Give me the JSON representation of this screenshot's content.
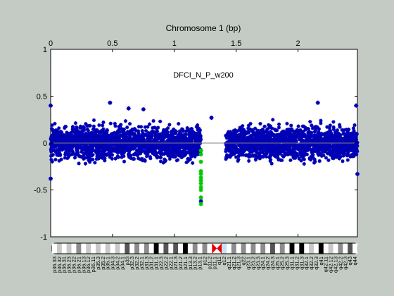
{
  "chart_data": {
    "type": "scatter",
    "title": "Chromosome 1 (bp)",
    "annotation": "DFCI_N_P_w200",
    "xlim": [
      0,
      2.48
    ],
    "ylim": [
      -1,
      1
    ],
    "x_ticks": [
      {
        "value": 0,
        "label": "0"
      },
      {
        "value": 0.5,
        "label": "0.5"
      },
      {
        "value": 1,
        "label": "1"
      },
      {
        "value": 1.5,
        "label": "1.5"
      },
      {
        "value": 2,
        "label": "2"
      }
    ],
    "y_ticks": [
      {
        "value": 1,
        "label": "1"
      },
      {
        "value": 0.5,
        "label": "0.5"
      },
      {
        "value": 0,
        "label": "0"
      },
      {
        "value": -0.5,
        "label": "-0.5"
      },
      {
        "value": -1,
        "label": "-1"
      }
    ],
    "x_axis_position": "top",
    "baseline": 0,
    "colors": {
      "points": "#0000b4",
      "highlight": "#00c800",
      "baseline": "#808080",
      "background": "#c4cbc4",
      "plot_bg": "#ffffff"
    },
    "point_groups": [
      {
        "x_start": 0.0,
        "x_end": 1.215,
        "y_center": 0.0,
        "y_spread_low": -0.26,
        "y_spread_high": 0.27,
        "color": "#0000b4"
      },
      {
        "x_start": 1.415,
        "x_end": 2.48,
        "y_center": 0.0,
        "y_spread_low": -0.26,
        "y_spread_high": 0.27,
        "color": "#0000b4"
      }
    ],
    "points": [
      {
        "x": 0.0,
        "y": 0.4,
        "color": "#0000b4"
      },
      {
        "x": 0.0,
        "y": -0.38,
        "color": "#0000b4"
      },
      {
        "x": 0.48,
        "y": 0.43,
        "color": "#0000b4"
      },
      {
        "x": 0.63,
        "y": 0.37,
        "color": "#0000b4"
      },
      {
        "x": 0.75,
        "y": 0.36,
        "color": "#0000b4"
      },
      {
        "x": 1.3,
        "y": 0.27,
        "color": "#0000b4"
      },
      {
        "x": 2.16,
        "y": 0.43,
        "color": "#0000b4"
      },
      {
        "x": 2.47,
        "y": 0.4,
        "color": "#0000b4"
      },
      {
        "x": 2.48,
        "y": -0.33,
        "color": "#0000b4"
      },
      {
        "x": 1.215,
        "y": -0.62,
        "color": "#0000b4"
      },
      {
        "x": 1.215,
        "y": -0.08,
        "color": "#00c800"
      },
      {
        "x": 1.215,
        "y": -0.12,
        "color": "#00c800"
      },
      {
        "x": 1.215,
        "y": -0.2,
        "color": "#00c800"
      },
      {
        "x": 1.215,
        "y": -0.3,
        "color": "#00c800"
      },
      {
        "x": 1.215,
        "y": -0.33,
        "color": "#00c800"
      },
      {
        "x": 1.215,
        "y": -0.37,
        "color": "#00c800"
      },
      {
        "x": 1.215,
        "y": -0.4,
        "color": "#00c800"
      },
      {
        "x": 1.215,
        "y": -0.43,
        "color": "#00c800"
      },
      {
        "x": 1.215,
        "y": -0.47,
        "color": "#00c800"
      },
      {
        "x": 1.215,
        "y": -0.5,
        "color": "#00c800"
      },
      {
        "x": 1.215,
        "y": -0.58,
        "color": "#00c800"
      },
      {
        "x": 1.215,
        "y": -0.65,
        "color": "#00c800"
      }
    ]
  },
  "ideogram": {
    "bands": [
      {
        "label": "p36.33",
        "stain": "gneg"
      },
      {
        "label": "p36.32",
        "stain": "gpos25"
      },
      {
        "label": "p36.31",
        "stain": "gneg"
      },
      {
        "label": "p36.23",
        "stain": "gpos25"
      },
      {
        "label": "p36.22",
        "stain": "gneg"
      },
      {
        "label": "p36.21",
        "stain": "gpos50"
      },
      {
        "label": "p36.13",
        "stain": "gneg"
      },
      {
        "label": "p36.12",
        "stain": "gpos25"
      },
      {
        "label": "p36.11",
        "stain": "gneg"
      },
      {
        "label": "p35.3",
        "stain": "gpos25"
      },
      {
        "label": "p35.2",
        "stain": "gneg"
      },
      {
        "label": "p35.1",
        "stain": "gpos25"
      },
      {
        "label": "p34.3",
        "stain": "gneg"
      },
      {
        "label": "p34.2",
        "stain": "gpos25"
      },
      {
        "label": "p34.1",
        "stain": "gneg"
      },
      {
        "label": "p33",
        "stain": "gpos75"
      },
      {
        "label": "p32.3",
        "stain": "gneg"
      },
      {
        "label": "p32.2",
        "stain": "gpos50"
      },
      {
        "label": "p32.1",
        "stain": "gneg"
      },
      {
        "label": "p31.3",
        "stain": "gpos50"
      },
      {
        "label": "p31.2",
        "stain": "gneg"
      },
      {
        "label": "p31.1",
        "stain": "gpos100"
      },
      {
        "label": "p22.3",
        "stain": "gneg"
      },
      {
        "label": "p22.2",
        "stain": "gpos75"
      },
      {
        "label": "p22.1",
        "stain": "gneg"
      },
      {
        "label": "p21.3",
        "stain": "gpos75"
      },
      {
        "label": "p21.2",
        "stain": "gneg"
      },
      {
        "label": "p21.1",
        "stain": "gpos100"
      },
      {
        "label": "p13.3",
        "stain": "gneg"
      },
      {
        "label": "p13.2",
        "stain": "gpos50"
      },
      {
        "label": "p13.1",
        "stain": "gneg"
      },
      {
        "label": "p12",
        "stain": "gpos50"
      },
      {
        "label": "p11.2",
        "stain": "gneg"
      },
      {
        "label": "p11.1",
        "stain": "acen"
      },
      {
        "label": "q11",
        "stain": "acen"
      },
      {
        "label": "q12",
        "stain": "gvar"
      },
      {
        "label": "q21.1",
        "stain": "gneg"
      },
      {
        "label": "q21.2",
        "stain": "gpos50"
      },
      {
        "label": "q21.3",
        "stain": "gneg"
      },
      {
        "label": "q22",
        "stain": "gpos50"
      },
      {
        "label": "q23.1",
        "stain": "gneg"
      },
      {
        "label": "q23.2",
        "stain": "gpos50"
      },
      {
        "label": "q23.3",
        "stain": "gneg"
      },
      {
        "label": "q24.1",
        "stain": "gpos50"
      },
      {
        "label": "q24.2",
        "stain": "gneg"
      },
      {
        "label": "q24.3",
        "stain": "gpos75"
      },
      {
        "label": "q25.1",
        "stain": "gneg"
      },
      {
        "label": "q25.2",
        "stain": "gpos50"
      },
      {
        "label": "q25.3",
        "stain": "gneg"
      },
      {
        "label": "q31.1",
        "stain": "gpos100"
      },
      {
        "label": "q31.2",
        "stain": "gneg"
      },
      {
        "label": "q31.3",
        "stain": "gpos100"
      },
      {
        "label": "q32.1",
        "stain": "gneg"
      },
      {
        "label": "q32.2",
        "stain": "gpos25"
      },
      {
        "label": "q32.3",
        "stain": "gneg"
      },
      {
        "label": "q41",
        "stain": "gpos100"
      },
      {
        "label": "q42.11",
        "stain": "gneg"
      },
      {
        "label": "q42.12",
        "stain": "gpos25"
      },
      {
        "label": "q42.13",
        "stain": "gneg"
      },
      {
        "label": "q42.2",
        "stain": "gpos50"
      },
      {
        "label": "q42.3",
        "stain": "gneg"
      },
      {
        "label": "q43",
        "stain": "gpos75"
      },
      {
        "label": "q44",
        "stain": "gneg"
      }
    ]
  }
}
